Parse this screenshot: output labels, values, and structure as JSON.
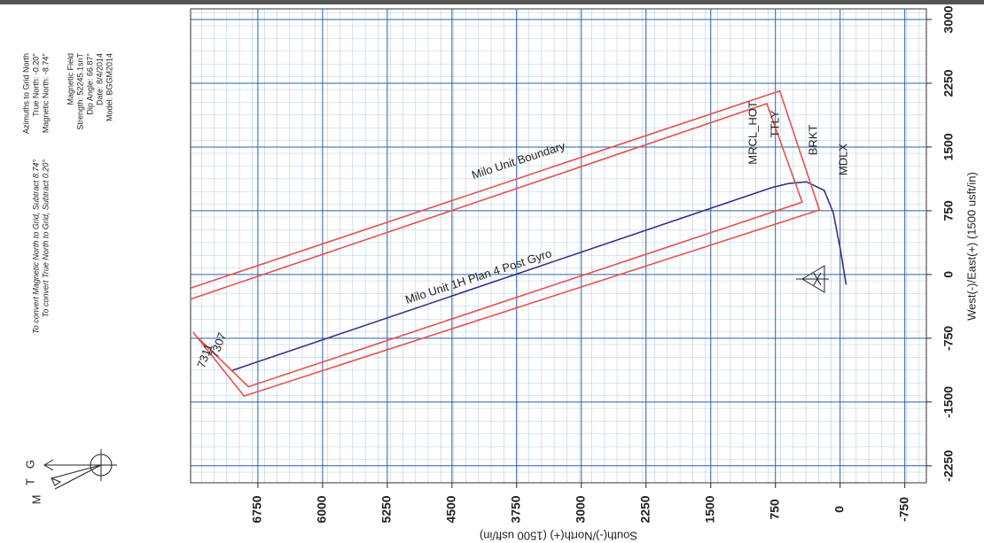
{
  "chart_data": {
    "type": "line",
    "xlabel": "South(-)/North(+) (1500 usft/in)",
    "ylabel": "West(-)/East(+) (1500 usft/in)",
    "xlim": [
      7530,
      -1000
    ],
    "ylim": [
      -2450,
      3125
    ],
    "xticks": [
      6750,
      6000,
      5250,
      4500,
      3750,
      3000,
      2250,
      1500,
      750,
      0,
      -750
    ],
    "yticks": [
      -2250,
      -1500,
      -750,
      0,
      750,
      1500,
      2250,
      3000
    ],
    "grid": true,
    "series": [
      {
        "name": "Milo Unit 1H Plan 4 Post Gyro",
        "color": "#3b2f86",
        "x": [
          -70,
          0,
          80,
          185,
          390,
          600,
          800,
          7050
        ],
        "values": [
          -120,
          310,
          730,
          990,
          1090,
          1070,
          1020,
          -1130
        ]
      },
      {
        "name": "Milo Unit Boundary",
        "color": "#e8504a",
        "x": [
          7530,
          700,
          240,
          6910,
          7500,
          null,
          7530,
          850,
          440,
          6860,
          7460
        ],
        "values": [
          -160,
          2160,
          760,
          -1430,
          -680,
          null,
          -290,
          2010,
          850,
          -1320,
          -730
        ]
      }
    ],
    "annotations": [
      "MRCL_HOT",
      "TTLY",
      "BRKT",
      "MDLX",
      "7307",
      "7311"
    ]
  },
  "info": {
    "azimuths": [
      "Azimuths to Grid North",
      "True North: -0.20°",
      "Magnetic North: -8.74°"
    ],
    "magnetic": [
      "Magnetic Field",
      "Strength: 52245.1snT",
      "Dip Angle: 66.87°",
      "Date: 8/4/2014",
      "Model: BGGM2014"
    ],
    "convert": [
      "To convert Magnetic North to Grid, Subtract 8.74°",
      "To convert True North to Grid, Subtract 0.20°"
    ],
    "arrow": [
      "G",
      "T",
      "M"
    ]
  }
}
